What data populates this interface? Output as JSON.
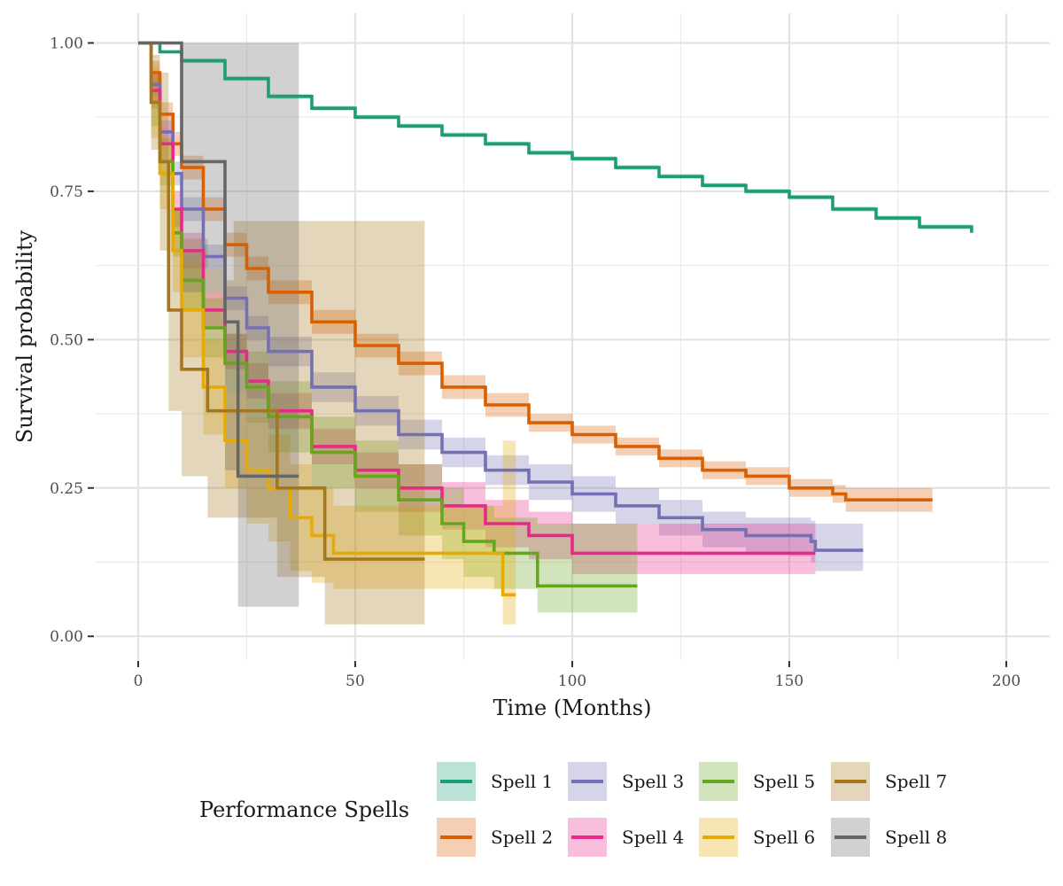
{
  "chart_data": {
    "type": "line",
    "title": "",
    "xlabel": "Time (Months)",
    "ylabel": "Survival probability",
    "xlim": [
      -10,
      210
    ],
    "ylim": [
      -0.04,
      1.05
    ],
    "x_ticks": [
      0,
      50,
      100,
      150,
      200
    ],
    "x_tick_labels": [
      "0",
      "50",
      "100",
      "150",
      "200"
    ],
    "y_ticks": [
      0,
      0.25,
      0.5,
      0.75,
      1.0
    ],
    "y_tick_labels": [
      "0.00",
      "0.25",
      "0.50",
      "0.75",
      "1.00"
    ],
    "grid": true,
    "legend": {
      "title": "Performance Spells",
      "position": "bottom"
    },
    "series": [
      {
        "name": "Spell 1",
        "color": "#1b9e77",
        "x": [
          0,
          5,
          10,
          20,
          30,
          40,
          50,
          60,
          70,
          80,
          90,
          100,
          110,
          120,
          130,
          140,
          150,
          160,
          170,
          180,
          192
        ],
        "y": [
          1.0,
          0.985,
          0.97,
          0.94,
          0.91,
          0.89,
          0.875,
          0.86,
          0.845,
          0.83,
          0.815,
          0.805,
          0.79,
          0.775,
          0.76,
          0.75,
          0.74,
          0.72,
          0.705,
          0.69,
          0.68
        ],
        "lower": [
          1.0,
          0.982,
          0.966,
          0.936,
          0.906,
          0.886,
          0.871,
          0.856,
          0.841,
          0.826,
          0.811,
          0.801,
          0.786,
          0.771,
          0.756,
          0.746,
          0.736,
          0.716,
          0.701,
          0.686,
          0.676
        ],
        "upper": [
          1.0,
          0.988,
          0.974,
          0.944,
          0.914,
          0.894,
          0.879,
          0.864,
          0.849,
          0.834,
          0.819,
          0.809,
          0.794,
          0.779,
          0.764,
          0.754,
          0.744,
          0.724,
          0.709,
          0.694,
          0.684
        ]
      },
      {
        "name": "Spell 2",
        "color": "#d95f02",
        "x": [
          2,
          3,
          5,
          8,
          10,
          15,
          20,
          25,
          30,
          40,
          50,
          60,
          70,
          80,
          90,
          100,
          110,
          120,
          130,
          140,
          150,
          160,
          163,
          183
        ],
        "y": [
          1.0,
          0.95,
          0.88,
          0.83,
          0.79,
          0.72,
          0.66,
          0.62,
          0.58,
          0.53,
          0.49,
          0.46,
          0.42,
          0.39,
          0.36,
          0.34,
          0.32,
          0.3,
          0.28,
          0.27,
          0.25,
          0.24,
          0.23,
          0.23
        ],
        "lower": [
          1.0,
          0.93,
          0.86,
          0.81,
          0.77,
          0.7,
          0.64,
          0.6,
          0.56,
          0.51,
          0.47,
          0.44,
          0.4,
          0.37,
          0.345,
          0.325,
          0.305,
          0.285,
          0.265,
          0.255,
          0.235,
          0.225,
          0.21,
          0.21
        ],
        "upper": [
          1.0,
          0.97,
          0.9,
          0.85,
          0.81,
          0.74,
          0.68,
          0.64,
          0.6,
          0.55,
          0.51,
          0.48,
          0.44,
          0.41,
          0.375,
          0.355,
          0.335,
          0.315,
          0.295,
          0.285,
          0.265,
          0.255,
          0.25,
          0.25
        ]
      },
      {
        "name": "Spell 3",
        "color": "#7570b3",
        "x": [
          2,
          3,
          5,
          8,
          10,
          15,
          20,
          25,
          30,
          40,
          50,
          60,
          70,
          80,
          90,
          100,
          110,
          120,
          130,
          140,
          150,
          155,
          156,
          167
        ],
        "y": [
          1.0,
          0.93,
          0.85,
          0.78,
          0.72,
          0.64,
          0.57,
          0.52,
          0.48,
          0.42,
          0.38,
          0.34,
          0.31,
          0.28,
          0.26,
          0.24,
          0.22,
          0.2,
          0.18,
          0.17,
          0.17,
          0.16,
          0.145,
          0.145
        ],
        "lower": [
          1.0,
          0.91,
          0.83,
          0.76,
          0.7,
          0.62,
          0.55,
          0.5,
          0.455,
          0.395,
          0.355,
          0.315,
          0.285,
          0.255,
          0.23,
          0.21,
          0.19,
          0.17,
          0.15,
          0.14,
          0.135,
          0.125,
          0.11,
          0.11
        ],
        "upper": [
          1.0,
          0.95,
          0.87,
          0.8,
          0.74,
          0.66,
          0.59,
          0.54,
          0.505,
          0.445,
          0.405,
          0.365,
          0.335,
          0.305,
          0.29,
          0.27,
          0.25,
          0.23,
          0.21,
          0.2,
          0.2,
          0.195,
          0.19,
          0.19
        ]
      },
      {
        "name": "Spell 4",
        "color": "#e7298a",
        "x": [
          2,
          3,
          5,
          8,
          10,
          15,
          20,
          25,
          30,
          40,
          50,
          60,
          70,
          80,
          90,
          100,
          110,
          120,
          156
        ],
        "y": [
          1.0,
          0.92,
          0.83,
          0.72,
          0.65,
          0.55,
          0.48,
          0.43,
          0.38,
          0.32,
          0.28,
          0.25,
          0.22,
          0.19,
          0.17,
          0.14,
          0.14,
          0.14,
          0.14
        ],
        "lower": [
          1.0,
          0.89,
          0.8,
          0.69,
          0.62,
          0.52,
          0.45,
          0.4,
          0.35,
          0.29,
          0.25,
          0.21,
          0.18,
          0.15,
          0.13,
          0.105,
          0.105,
          0.105,
          0.105
        ],
        "upper": [
          1.0,
          0.95,
          0.86,
          0.75,
          0.68,
          0.58,
          0.51,
          0.46,
          0.41,
          0.35,
          0.31,
          0.29,
          0.26,
          0.23,
          0.21,
          0.19,
          0.19,
          0.19,
          0.19
        ]
      },
      {
        "name": "Spell 5",
        "color": "#66a61e",
        "x": [
          2,
          3,
          5,
          8,
          10,
          15,
          20,
          25,
          30,
          40,
          50,
          60,
          70,
          75,
          82,
          92,
          115
        ],
        "y": [
          1.0,
          0.9,
          0.8,
          0.68,
          0.6,
          0.52,
          0.46,
          0.42,
          0.37,
          0.31,
          0.27,
          0.23,
          0.19,
          0.16,
          0.14,
          0.085,
          0.085
        ],
        "lower": [
          1.0,
          0.86,
          0.76,
          0.64,
          0.55,
          0.47,
          0.41,
          0.36,
          0.31,
          0.25,
          0.21,
          0.17,
          0.13,
          0.1,
          0.08,
          0.04,
          0.04
        ],
        "upper": [
          1.0,
          0.94,
          0.84,
          0.72,
          0.65,
          0.57,
          0.51,
          0.48,
          0.43,
          0.37,
          0.33,
          0.29,
          0.25,
          0.22,
          0.2,
          0.19,
          0.19
        ]
      },
      {
        "name": "Spell 6",
        "color": "#e6ab02",
        "x": [
          2,
          3,
          5,
          8,
          10,
          15,
          20,
          25,
          30,
          35,
          40,
          45,
          50,
          60,
          70,
          80,
          84,
          87
        ],
        "y": [
          1.0,
          0.9,
          0.78,
          0.65,
          0.55,
          0.42,
          0.33,
          0.28,
          0.25,
          0.2,
          0.17,
          0.14,
          0.14,
          0.14,
          0.14,
          0.14,
          0.07,
          0.07
        ],
        "lower": [
          1.0,
          0.84,
          0.72,
          0.58,
          0.47,
          0.34,
          0.25,
          0.19,
          0.16,
          0.11,
          0.09,
          0.08,
          0.08,
          0.08,
          0.08,
          0.08,
          0.02,
          0.02
        ],
        "upper": [
          1.0,
          0.96,
          0.84,
          0.72,
          0.63,
          0.5,
          0.41,
          0.37,
          0.34,
          0.29,
          0.25,
          0.22,
          0.22,
          0.22,
          0.22,
          0.22,
          0.33,
          0.33
        ]
      },
      {
        "name": "Spell 7",
        "color": "#a6761d",
        "x": [
          2,
          3,
          5,
          7,
          10,
          16,
          20,
          22,
          30,
          32,
          43,
          66
        ],
        "y": [
          1.0,
          0.9,
          0.8,
          0.55,
          0.45,
          0.38,
          0.38,
          0.38,
          0.38,
          0.25,
          0.13,
          0.13
        ],
        "lower": [
          1.0,
          0.82,
          0.65,
          0.38,
          0.27,
          0.2,
          0.2,
          0.2,
          0.2,
          0.1,
          0.02,
          0.02
        ],
        "upper": [
          1.0,
          0.98,
          0.95,
          0.72,
          0.67,
          0.62,
          0.6,
          0.7,
          0.7,
          0.7,
          0.7,
          0.7
        ]
      },
      {
        "name": "Spell 8",
        "color": "#666666",
        "x": [
          0,
          10,
          20,
          23,
          32,
          37
        ],
        "y": [
          1.0,
          0.8,
          0.53,
          0.27,
          0.27,
          0.27
        ],
        "lower": [
          1.0,
          0.58,
          0.28,
          0.05,
          0.05,
          0.05
        ],
        "upper": [
          1.0,
          1.0,
          1.0,
          1.0,
          1.0,
          1.0
        ]
      }
    ]
  }
}
